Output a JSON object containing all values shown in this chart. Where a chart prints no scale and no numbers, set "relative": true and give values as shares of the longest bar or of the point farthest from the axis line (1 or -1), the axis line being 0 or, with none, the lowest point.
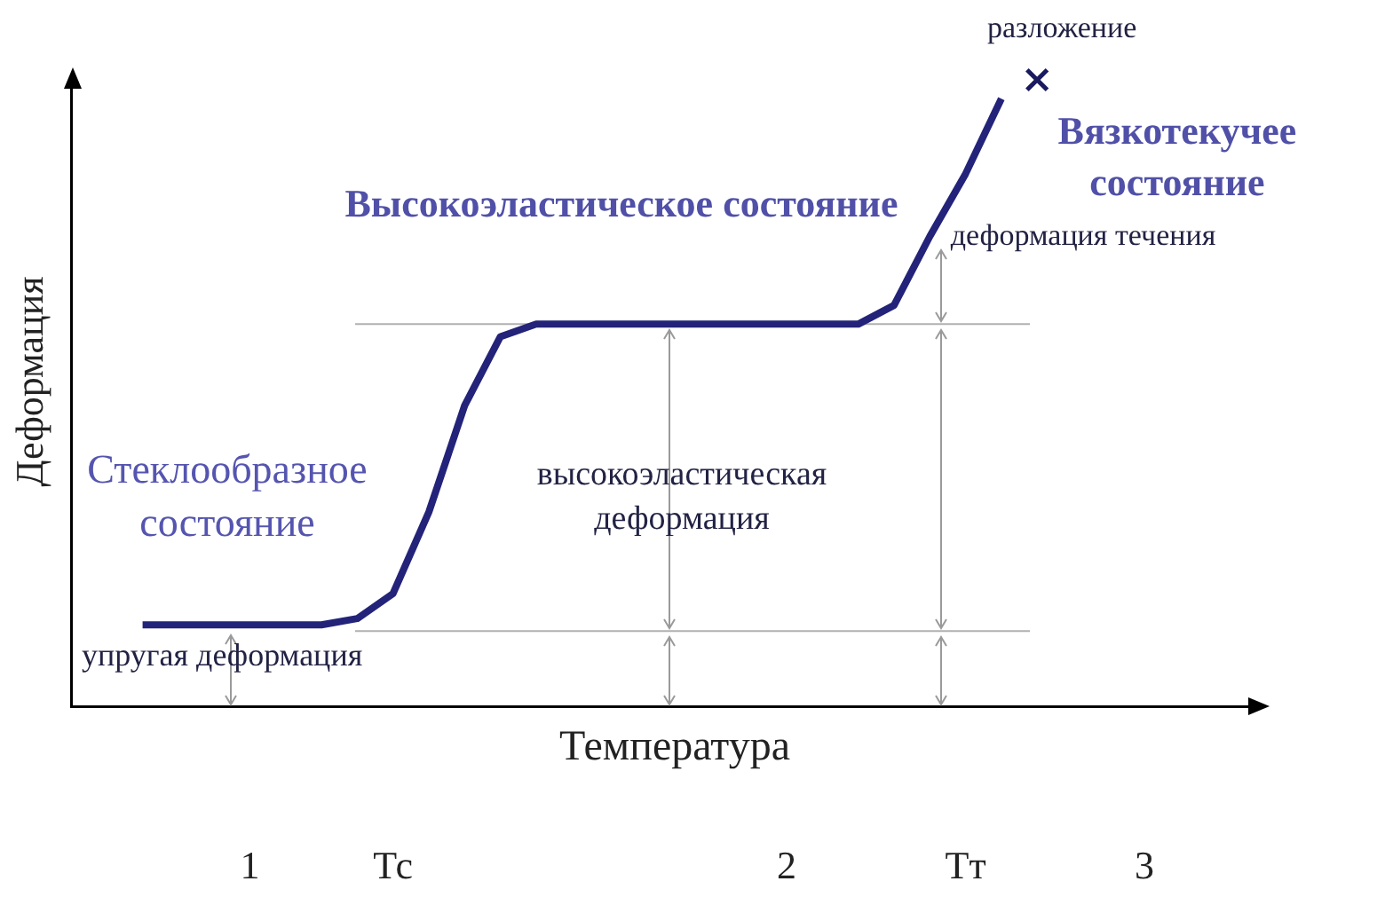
{
  "chart_data": {
    "type": "line",
    "relative": true,
    "xlabel": "Температура",
    "ylabel": "Деформация",
    "categories": [
      null,
      null,
      null,
      null,
      null,
      "1",
      null,
      null,
      null,
      "Тс",
      null,
      null,
      null,
      null,
      null,
      null,
      null,
      null,
      null,
      null,
      "2",
      null,
      null,
      null,
      null,
      "Тт",
      null,
      null,
      null,
      null,
      "3",
      null,
      null,
      null
    ],
    "series": [
      {
        "type": "line",
        "color": "#23237a",
        "line_style": "solid",
        "marker": "none",
        "values": [
          null,
          null,
          0.13,
          0.13,
          0.13,
          0.13,
          0.13,
          0.13,
          0.14,
          0.18,
          0.31,
          0.48,
          0.59,
          0.61,
          0.61,
          0.61,
          0.61,
          0.61,
          0.61,
          0.61,
          0.61,
          0.61,
          0.61,
          0.64,
          0.75,
          0.85,
          0.97,
          null,
          null,
          null,
          null,
          null,
          null,
          null
        ]
      },
      {
        "type": "scatter",
        "color": "#1a1a60",
        "marker": "cross",
        "values": [
          null,
          null,
          null,
          null,
          null,
          null,
          null,
          null,
          null,
          null,
          null,
          null,
          null,
          null,
          null,
          null,
          null,
          null,
          null,
          null,
          null,
          null,
          null,
          null,
          null,
          null,
          null,
          1,
          null,
          null,
          null,
          null,
          null,
          null
        ]
      }
    ],
    "ref_lines": [
      {
        "axis": "y",
        "value": 0.12,
        "color": "#b0b0b0"
      },
      {
        "axis": "y",
        "value": 0.61,
        "color": "#b0b0b0"
      }
    ],
    "annotations": [
      "Стеклообразное состояние",
      "Высокоэластическое состояние",
      "Вязкотекучее состояние",
      "высокоэластическая деформация",
      "деформация течения",
      "упругая деформация",
      "разложение"
    ],
    "grid": false,
    "legend": false
  }
}
